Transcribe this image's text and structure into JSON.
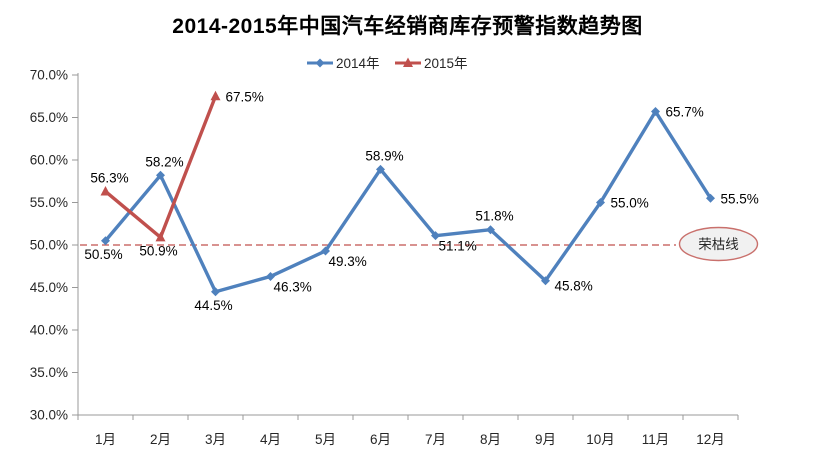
{
  "title": "2014-2015年中国汽车经销商库存预警指数趋势图",
  "colors": {
    "series_2014": "#4F81BD",
    "series_2015": "#C0504D",
    "reference_line": "#C0504D",
    "axis": "#999999",
    "annotation_fill": "#F1F1F1",
    "annotation_stroke": "#C9706C"
  },
  "chart_data": {
    "type": "line",
    "title": "2014-2015年中国汽车经销商库存预警指数趋势图",
    "categories": [
      "1月",
      "2月",
      "3月",
      "4月",
      "5月",
      "6月",
      "7月",
      "8月",
      "9月",
      "10月",
      "11月",
      "12月"
    ],
    "series": [
      {
        "name": "2014年",
        "color": "#4F81BD",
        "marker": "diamond",
        "values": [
          50.5,
          58.2,
          44.5,
          46.3,
          49.3,
          58.9,
          51.1,
          51.8,
          45.8,
          55.0,
          65.7,
          55.5
        ],
        "label_positions": [
          "below",
          "above",
          "below",
          "below-right",
          "below-right",
          "above",
          "below-right",
          "above",
          "right-below",
          "right",
          "right",
          "right"
        ]
      },
      {
        "name": "2015年",
        "color": "#C0504D",
        "marker": "triangle",
        "values": [
          56.3,
          50.9,
          67.5
        ],
        "label_positions": [
          "above",
          "below",
          "right"
        ]
      }
    ],
    "ylim": [
      30,
      70
    ],
    "ytick_step": 5,
    "ytick_suffix": "%",
    "grid": false,
    "legend_position": "top",
    "reference_line": {
      "value": 50,
      "label": "荣枯线",
      "color": "#C0504D",
      "style": "dashed"
    }
  }
}
